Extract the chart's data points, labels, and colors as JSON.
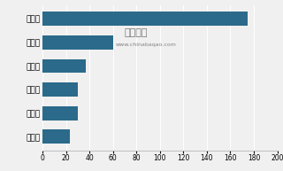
{
  "categories": [
    "山东省",
    "辽宁省",
    "浙江省",
    "江苏省",
    "广东省",
    "河北省"
  ],
  "values": [
    175,
    60,
    37,
    30,
    30,
    23
  ],
  "bar_color": "#2b6a8a",
  "xlim": [
    0,
    200
  ],
  "xticks": [
    0,
    20,
    40,
    60,
    80,
    100,
    120,
    140,
    160,
    180,
    200
  ],
  "background_color": "#f0f0f0",
  "plot_bg_color": "#f0f0f0",
  "grid_color": "#ffffff",
  "bar_height": 0.6,
  "tick_fontsize": 5.5,
  "label_fontsize": 6.5,
  "watermark_text": "观研天下",
  "watermark_url": "www.chinabaqao.com"
}
